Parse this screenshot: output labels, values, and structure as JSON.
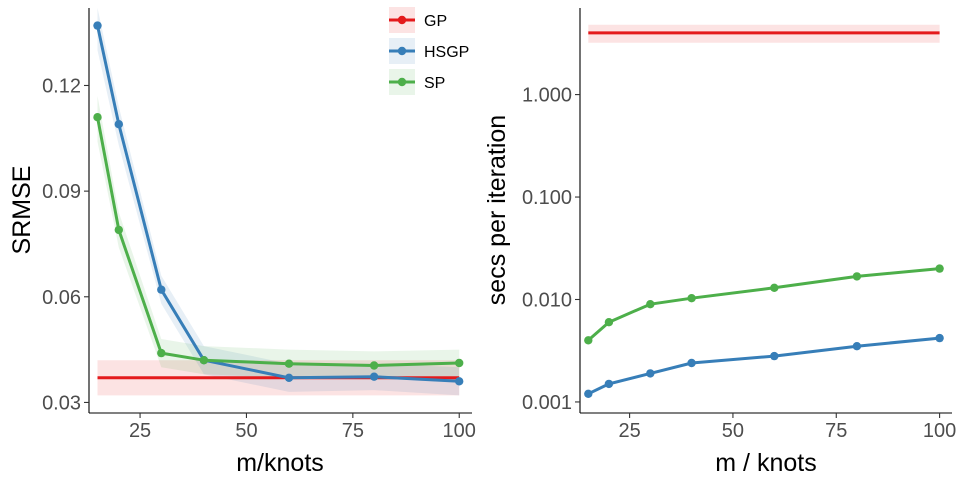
{
  "chart_data": [
    {
      "type": "line",
      "panel": "left",
      "title": "",
      "xlabel": "m/knots",
      "ylabel": "SRMSE",
      "xlim": [
        13,
        103
      ],
      "ylim": [
        0.027,
        0.142
      ],
      "xticks": [
        25,
        50,
        75,
        100
      ],
      "xtick_labels": [
        "25",
        "50",
        "75",
        "100"
      ],
      "yticks": [
        0.03,
        0.06,
        0.09,
        0.12
      ],
      "ytick_labels": [
        "0.03",
        "0.06",
        "0.09",
        "0.12"
      ],
      "grid": false,
      "legend_position": "top-right",
      "series": [
        {
          "name": "GP",
          "color": "#E41A1C",
          "markers": false,
          "x": [
            15,
            100
          ],
          "y": [
            0.037,
            0.037
          ],
          "band_lower": [
            0.032,
            0.032
          ],
          "band_upper": [
            0.042,
            0.042
          ]
        },
        {
          "name": "HSGP",
          "color": "#377EB8",
          "markers": true,
          "x": [
            15,
            20,
            30,
            40,
            60,
            80,
            100
          ],
          "y": [
            0.137,
            0.109,
            0.062,
            0.042,
            0.037,
            0.0373,
            0.036
          ],
          "band_lower": [
            0.13,
            0.103,
            0.058,
            0.038,
            0.033,
            0.0335,
            0.032
          ],
          "band_upper": [
            0.142,
            0.114,
            0.066,
            0.046,
            0.041,
            0.041,
            0.04
          ]
        },
        {
          "name": "SP",
          "color": "#4DAF4A",
          "markers": true,
          "x": [
            15,
            20,
            30,
            40,
            60,
            80,
            100
          ],
          "y": [
            0.111,
            0.079,
            0.044,
            0.042,
            0.041,
            0.0405,
            0.0412
          ],
          "band_lower": [
            0.104,
            0.074,
            0.04,
            0.038,
            0.037,
            0.0365,
            0.037
          ],
          "band_upper": [
            0.117,
            0.084,
            0.048,
            0.046,
            0.045,
            0.0445,
            0.045
          ]
        }
      ]
    },
    {
      "type": "line",
      "panel": "right",
      "title": "",
      "xlabel": "m / knots",
      "ylabel": "secs per iteration",
      "yscale": "log10",
      "xlim": [
        13,
        103
      ],
      "ylim": [
        0.00078,
        7.0
      ],
      "xticks": [
        25,
        50,
        75,
        100
      ],
      "xtick_labels": [
        "25",
        "50",
        "75",
        "100"
      ],
      "yticks": [
        0.001,
        0.01,
        0.1,
        1
      ],
      "ytick_labels": [
        "0.001",
        "0.010",
        "0.100",
        "1.000"
      ],
      "grid": false,
      "series": [
        {
          "name": "GP",
          "color": "#E41A1C",
          "markers": false,
          "x": [
            15,
            100
          ],
          "y": [
            4.0,
            4.0
          ],
          "band_lower": [
            3.2,
            3.2
          ],
          "band_upper": [
            4.8,
            4.8
          ]
        },
        {
          "name": "HSGP",
          "color": "#377EB8",
          "markers": true,
          "x": [
            15,
            20,
            30,
            40,
            60,
            80,
            100
          ],
          "y": [
            0.0012,
            0.0015,
            0.0019,
            0.0024,
            0.0028,
            0.0035,
            0.0042
          ]
        },
        {
          "name": "SP",
          "color": "#4DAF4A",
          "markers": true,
          "x": [
            15,
            20,
            30,
            40,
            60,
            80,
            100
          ],
          "y": [
            0.004,
            0.006,
            0.009,
            0.0103,
            0.013,
            0.0168,
            0.02
          ]
        }
      ]
    }
  ],
  "legend": {
    "items": [
      {
        "label": "GP",
        "color": "#E41A1C"
      },
      {
        "label": "HSGP",
        "color": "#377EB8"
      },
      {
        "label": "SP",
        "color": "#4DAF4A"
      }
    ]
  }
}
